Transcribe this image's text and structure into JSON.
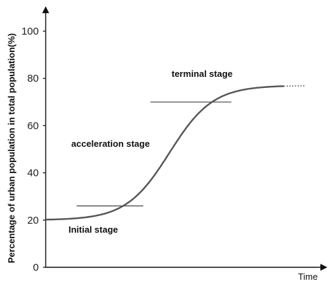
{
  "chart_data": {
    "type": "line",
    "title": "",
    "xlabel": "Time",
    "ylabel": "Percentage of urban population in total population(%)",
    "ylim": [
      0,
      100
    ],
    "yticks": [
      0,
      20,
      40,
      60,
      80,
      100
    ],
    "grid": false,
    "series": [
      {
        "curve": "logistic",
        "lower": 20,
        "upper": 77,
        "x": [
          0,
          0.1,
          0.2,
          0.3,
          0.35,
          0.4,
          0.45,
          0.5,
          0.55,
          0.6,
          0.65,
          0.7,
          0.75,
          0.8,
          0.9,
          1.0
        ],
        "y": [
          20.5,
          21.2,
          22.5,
          25.5,
          28.5,
          33,
          39,
          46,
          54,
          61,
          66.5,
          70.5,
          73.2,
          75,
          76.6,
          77
        ],
        "trailing_dotted": true
      }
    ],
    "reference_lines": [
      {
        "y": 26,
        "x_start": 0.13,
        "x_end": 0.41
      },
      {
        "y": 70,
        "x_start": 0.44,
        "x_end": 0.78
      }
    ],
    "annotations": [
      {
        "id": "terminal",
        "text": "terminal stage"
      },
      {
        "id": "acceleration",
        "text": "acceleration stage"
      },
      {
        "id": "initial",
        "text": "Initial stage"
      }
    ]
  }
}
